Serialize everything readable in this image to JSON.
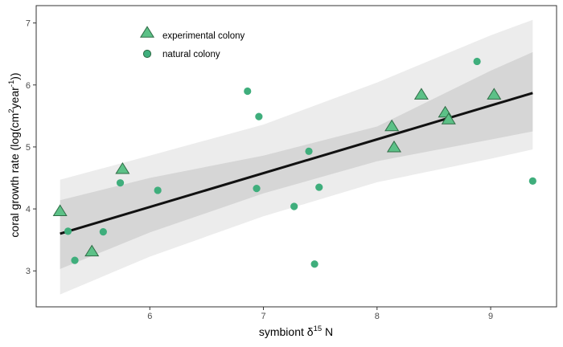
{
  "chart_data": {
    "type": "scatter",
    "title": "",
    "xlabel": "symbiont δ15 N",
    "xlabel_parts": {
      "prefix": "symbiont δ",
      "sup": "15",
      "suffix": " N"
    },
    "ylabel": "coral growth rate (log(cm2year-1))",
    "ylabel_parts": {
      "a": "coral growth rate (log(cm",
      "sup1": "2",
      "b": "year",
      "sup2": "-1",
      "c": "))"
    },
    "xlim": [
      5.0,
      9.58
    ],
    "ylim": [
      2.42,
      7.28
    ],
    "x_ticks": [
      6,
      7,
      8,
      9
    ],
    "y_ticks": [
      3,
      4,
      5,
      6,
      7
    ],
    "grid": false,
    "legend": {
      "position": "top-left",
      "entries": [
        {
          "label": "experimental colony",
          "shape": "triangle"
        },
        {
          "label": "natural colony",
          "shape": "circle"
        }
      ]
    },
    "series": [
      {
        "name": "experimental colony",
        "shape": "triangle",
        "points": [
          {
            "x": 5.21,
            "y": 3.96
          },
          {
            "x": 5.49,
            "y": 3.31
          },
          {
            "x": 5.76,
            "y": 4.64
          },
          {
            "x": 8.13,
            "y": 5.33
          },
          {
            "x": 8.15,
            "y": 4.99
          },
          {
            "x": 8.39,
            "y": 5.84
          },
          {
            "x": 8.6,
            "y": 5.55
          },
          {
            "x": 8.63,
            "y": 5.44
          },
          {
            "x": 9.03,
            "y": 5.84
          }
        ]
      },
      {
        "name": "natural colony",
        "shape": "circle",
        "points": [
          {
            "x": 5.28,
            "y": 3.64
          },
          {
            "x": 5.34,
            "y": 3.17
          },
          {
            "x": 5.59,
            "y": 3.63
          },
          {
            "x": 5.74,
            "y": 4.42
          },
          {
            "x": 6.07,
            "y": 4.3
          },
          {
            "x": 6.86,
            "y": 5.9
          },
          {
            "x": 6.94,
            "y": 4.33
          },
          {
            "x": 6.96,
            "y": 5.49
          },
          {
            "x": 7.27,
            "y": 4.04
          },
          {
            "x": 7.4,
            "y": 4.93
          },
          {
            "x": 7.45,
            "y": 3.11
          },
          {
            "x": 7.49,
            "y": 4.35
          },
          {
            "x": 8.88,
            "y": 6.38
          },
          {
            "x": 9.37,
            "y": 4.45
          }
        ]
      }
    ],
    "fit_line": {
      "x": [
        5.21,
        9.37
      ],
      "y": [
        3.6,
        5.87
      ]
    },
    "inner_band": {
      "x": [
        5.21,
        6.0,
        7.0,
        8.0,
        9.0,
        9.37
      ],
      "lower": [
        3.03,
        3.62,
        4.25,
        4.77,
        5.12,
        5.25
      ],
      "upper": [
        4.14,
        4.5,
        4.86,
        5.33,
        6.23,
        6.53
      ]
    },
    "outer_band": {
      "x": [
        5.21,
        6.0,
        7.0,
        8.0,
        9.0,
        9.37
      ],
      "lower": [
        2.62,
        3.23,
        3.88,
        4.43,
        4.81,
        4.96
      ],
      "upper": [
        4.47,
        4.86,
        5.36,
        6.04,
        6.8,
        7.05
      ]
    },
    "colors": {
      "point_fill": "#3fae7c",
      "triangle_fill": "#5cc187",
      "triangle_stroke": "#2f6b45",
      "line": "#111111",
      "inner_band": "#d6d6d6",
      "outer_band": "#ececec",
      "axis_text": "#4d4d4d",
      "title_text": "#000000",
      "panel_border": "#333333"
    }
  }
}
